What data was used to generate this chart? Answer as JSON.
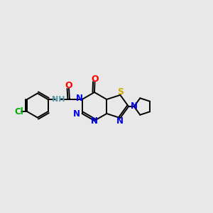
{
  "background_color": "#e8e8e8",
  "bond_color": "#000000",
  "figsize": [
    3.0,
    3.0
  ],
  "dpi": 100,
  "atom_colors": {
    "N": "#0000ee",
    "O": "#ff0000",
    "S": "#ccaa00",
    "Cl": "#00aa00",
    "NH": "#5599aa"
  },
  "lw": 1.4,
  "fs": 8.5
}
